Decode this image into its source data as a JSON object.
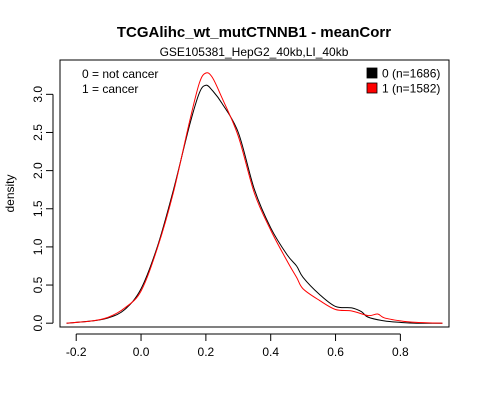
{
  "chart_data": {
    "type": "line",
    "title": "TCGAlihc_wt_mutCTNNB1 - meanCorr",
    "subtitle": "GSE105381_HepG2_40kb,LI_40kb",
    "xlabel": "",
    "ylabel": "density",
    "xlim": [
      -0.25,
      0.95
    ],
    "ylim": [
      -0.05,
      3.45
    ],
    "x_ticks": [
      -0.2,
      0.0,
      0.2,
      0.4,
      0.6,
      0.8
    ],
    "x_tick_labels": [
      "-0.2",
      "0.0",
      "0.2",
      "0.4",
      "0.6",
      "0.8"
    ],
    "y_ticks": [
      0.0,
      0.5,
      1.0,
      1.5,
      2.0,
      2.5,
      3.0
    ],
    "y_tick_labels": [
      "0.0",
      "0.5",
      "1.0",
      "1.5",
      "2.0",
      "2.5",
      "3.0"
    ],
    "grid": false,
    "annotations": [
      "0 = not cancer",
      "1 = cancer"
    ],
    "legend_position": "top-right",
    "series": [
      {
        "name": "0 (n=1686)",
        "color": "#000000",
        "x": [
          -0.23,
          -0.15,
          -0.1,
          -0.05,
          0.0,
          0.05,
          0.1,
          0.15,
          0.18,
          0.2,
          0.22,
          0.25,
          0.3,
          0.35,
          0.4,
          0.45,
          0.48,
          0.5,
          0.55,
          0.6,
          0.65,
          0.68,
          0.7,
          0.75,
          0.8,
          0.85,
          0.93
        ],
        "y": [
          0.0,
          0.03,
          0.07,
          0.18,
          0.45,
          1.0,
          1.75,
          2.6,
          3.02,
          3.12,
          3.05,
          2.88,
          2.5,
          1.75,
          1.25,
          0.9,
          0.75,
          0.6,
          0.38,
          0.22,
          0.2,
          0.15,
          0.08,
          0.03,
          0.01,
          0.0,
          0.0
        ]
      },
      {
        "name": "1 (n=1582)",
        "color": "#ff0000",
        "x": [
          -0.23,
          -0.15,
          -0.1,
          -0.05,
          0.0,
          0.05,
          0.1,
          0.15,
          0.18,
          0.2,
          0.22,
          0.25,
          0.3,
          0.35,
          0.4,
          0.45,
          0.48,
          0.5,
          0.55,
          0.6,
          0.65,
          0.7,
          0.73,
          0.75,
          0.8,
          0.85,
          0.93
        ],
        "y": [
          0.0,
          0.03,
          0.08,
          0.2,
          0.42,
          0.98,
          1.72,
          2.65,
          3.15,
          3.28,
          3.22,
          2.95,
          2.45,
          1.7,
          1.22,
          0.82,
          0.6,
          0.45,
          0.3,
          0.18,
          0.16,
          0.1,
          0.12,
          0.07,
          0.03,
          0.01,
          0.0
        ]
      }
    ]
  }
}
